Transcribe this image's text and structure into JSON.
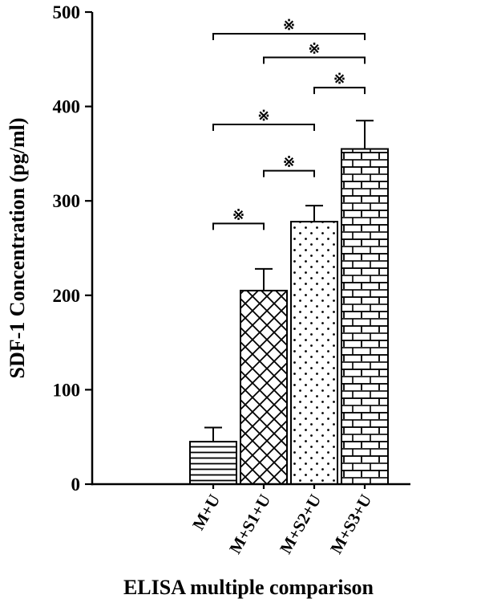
{
  "chart_data": {
    "type": "bar",
    "title": "",
    "xlabel": "ELISA multiple comparison",
    "ylabel": "SDF-1 Concentration (pg/ml)",
    "ylim": [
      0,
      500
    ],
    "yticks": [
      0,
      100,
      200,
      300,
      400,
      500
    ],
    "categories": [
      "M+U",
      "M+S1+U",
      "M+S2+U",
      "M+S3+U"
    ],
    "values": [
      45,
      205,
      278,
      355
    ],
    "errors": [
      15,
      23,
      17,
      30
    ],
    "bar_patterns": [
      "horizontal-lines",
      "crosshatch",
      "dots",
      "brick"
    ],
    "bar_fill_color": "#ffffff",
    "line_color": "#000000",
    "grid": "off",
    "legend": "none",
    "significance_marker": "※",
    "comparisons": [
      {
        "from": 0,
        "to": 1,
        "y": 276
      },
      {
        "from": 1,
        "to": 2,
        "y": 332
      },
      {
        "from": 0,
        "to": 2,
        "y": 381
      },
      {
        "from": 2,
        "to": 3,
        "y": 420
      },
      {
        "from": 1,
        "to": 3,
        "y": 452
      },
      {
        "from": 0,
        "to": 3,
        "y": 477
      }
    ]
  }
}
